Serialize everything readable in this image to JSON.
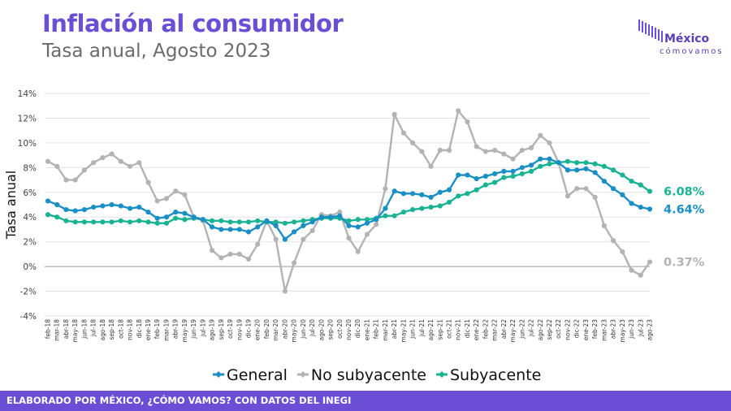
{
  "header": {
    "title": "Inflación al consumidor",
    "subtitle": "Tasa anual, Agosto 2023"
  },
  "logo": {
    "word": "México",
    "sub": "cómovamos"
  },
  "footer": {
    "text": "ELABORADO POR MÉXICO, ¿CÓMO VAMOS? CON DATOS DEL INEGI"
  },
  "chart_data": {
    "type": "line",
    "ylabel": "Tasa anual",
    "ylim": [
      -4,
      14
    ],
    "yticks": [
      -4,
      -2,
      0,
      2,
      4,
      6,
      8,
      10,
      12,
      14
    ],
    "ytick_labels": [
      "-4%",
      "-2%",
      "0%",
      "2%",
      "4%",
      "6%",
      "8%",
      "10%",
      "12%",
      "14%"
    ],
    "grid": true,
    "legend_position": "bottom",
    "categories": [
      "feb-18",
      "mar-18",
      "abr-18",
      "may-18",
      "jun-18",
      "jul-18",
      "ago-18",
      "sep-18",
      "oct-18",
      "nov-18",
      "dic-18",
      "ene-19",
      "feb-19",
      "mar-19",
      "abr-19",
      "may-19",
      "jun-19",
      "jul-19",
      "ago-19",
      "sep-19",
      "oct-19",
      "nov-19",
      "dic-19",
      "ene-20",
      "feb-20",
      "mar-20",
      "abr-20",
      "may-20",
      "jun-20",
      "jul-20",
      "ago-20",
      "sep-20",
      "oct-20",
      "nov-20",
      "dic-20",
      "ene-21",
      "feb-21",
      "mar-21",
      "abr-21",
      "may-21",
      "jun-21",
      "jul-21",
      "ago-21",
      "sep-21",
      "oct-21",
      "nov-21",
      "dic-21",
      "ene-22",
      "feb-22",
      "mar-22",
      "abr-22",
      "may-22",
      "jun-22",
      "jul-22",
      "ago-22",
      "sep-22",
      "oct-22",
      "nov-22",
      "dic-22",
      "ene-23",
      "feb-23",
      "mar-23",
      "abr-23",
      "may-23",
      "jun-23",
      "jul-23",
      "ago-23"
    ],
    "series": [
      {
        "name": "General",
        "color": "#1a8fc4",
        "end_label": "4.64%",
        "values": [
          5.3,
          5.0,
          4.6,
          4.5,
          4.6,
          4.8,
          4.9,
          5.0,
          4.9,
          4.7,
          4.8,
          4.4,
          3.9,
          4.0,
          4.4,
          4.3,
          4.0,
          3.8,
          3.2,
          3.0,
          3.0,
          3.0,
          2.8,
          3.2,
          3.7,
          3.3,
          2.2,
          2.8,
          3.3,
          3.6,
          4.0,
          4.0,
          4.1,
          3.3,
          3.2,
          3.5,
          3.8,
          4.7,
          6.1,
          5.9,
          5.9,
          5.8,
          5.6,
          6.0,
          6.2,
          7.4,
          7.4,
          7.1,
          7.3,
          7.5,
          7.7,
          7.7,
          8.0,
          8.2,
          8.7,
          8.7,
          8.4,
          7.8,
          7.8,
          7.9,
          7.6,
          6.9,
          6.3,
          5.8,
          5.1,
          4.8,
          4.64
        ]
      },
      {
        "name": "No subyacente",
        "color": "#b3b3b3",
        "end_label": "0.37%",
        "values": [
          8.5,
          8.1,
          7.0,
          7.0,
          7.8,
          8.4,
          8.8,
          9.1,
          8.5,
          8.1,
          8.4,
          6.8,
          5.3,
          5.5,
          6.1,
          5.8,
          4.0,
          3.7,
          1.3,
          0.7,
          1.0,
          1.0,
          0.6,
          1.8,
          3.7,
          2.2,
          -2.0,
          0.3,
          2.2,
          2.9,
          4.2,
          4.1,
          4.4,
          2.3,
          1.2,
          2.6,
          3.4,
          6.3,
          12.3,
          10.8,
          10.0,
          9.3,
          8.1,
          9.4,
          9.4,
          12.6,
          11.7,
          9.7,
          9.3,
          9.4,
          9.1,
          8.7,
          9.4,
          9.6,
          10.6,
          10.0,
          8.4,
          5.7,
          6.3,
          6.3,
          5.6,
          3.3,
          2.1,
          1.2,
          -0.3,
          -0.7,
          0.37
        ]
      },
      {
        "name": "Subyacente",
        "color": "#19b394",
        "end_label": "6.08%",
        "values": [
          4.2,
          4.0,
          3.7,
          3.6,
          3.6,
          3.6,
          3.6,
          3.6,
          3.7,
          3.6,
          3.7,
          3.6,
          3.5,
          3.5,
          3.9,
          3.8,
          3.9,
          3.8,
          3.7,
          3.7,
          3.6,
          3.6,
          3.6,
          3.7,
          3.6,
          3.6,
          3.5,
          3.6,
          3.7,
          3.8,
          3.9,
          3.9,
          3.9,
          3.7,
          3.8,
          3.8,
          3.9,
          4.1,
          4.1,
          4.4,
          4.6,
          4.7,
          4.8,
          4.9,
          5.2,
          5.7,
          5.9,
          6.2,
          6.6,
          6.8,
          7.2,
          7.3,
          7.5,
          7.7,
          8.1,
          8.3,
          8.4,
          8.5,
          8.4,
          8.4,
          8.3,
          8.1,
          7.8,
          7.4,
          6.9,
          6.6,
          6.08
        ]
      }
    ]
  }
}
